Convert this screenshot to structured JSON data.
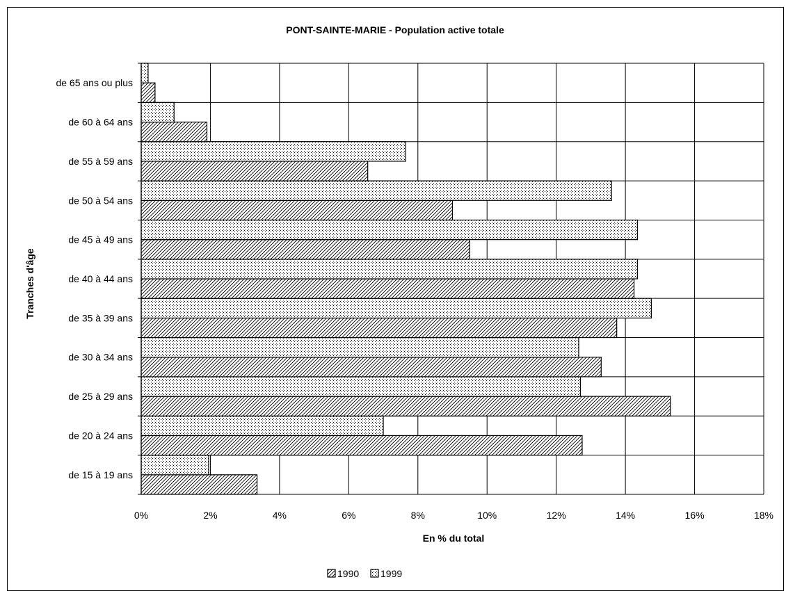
{
  "chart_data": {
    "type": "bar",
    "orientation": "horizontal",
    "title": "PONT-SAINTE-MARIE - Population active totale",
    "xlabel": "En % du total",
    "ylabel": "Tranches d'âge",
    "xlim": [
      0,
      18
    ],
    "x_ticks": [
      "0%",
      "2%",
      "4%",
      "6%",
      "8%",
      "10%",
      "12%",
      "14%",
      "16%",
      "18%"
    ],
    "grid": true,
    "legend_position": "bottom",
    "categories": [
      "de 15 à 19 ans",
      "de 20 à 24 ans",
      "de 25 à 29 ans",
      "de 30 à 34 ans",
      "de 35 à 39 ans",
      "de 40 à 44 ans",
      "de 45 à 49 ans",
      "de 50 à 54 ans",
      "de 55 à 59 ans",
      "de 60 à 64 ans",
      "de 65 ans ou plus"
    ],
    "series": [
      {
        "name": "1990",
        "pattern": "diagonal-hatch",
        "values": [
          3.35,
          12.75,
          15.3,
          13.3,
          13.75,
          14.25,
          9.5,
          9.0,
          6.55,
          1.9,
          0.4
        ]
      },
      {
        "name": "1999",
        "pattern": "dots",
        "values": [
          1.95,
          7.0,
          12.7,
          12.65,
          14.75,
          14.35,
          14.35,
          13.6,
          7.65,
          0.95,
          0.2
        ]
      }
    ]
  }
}
